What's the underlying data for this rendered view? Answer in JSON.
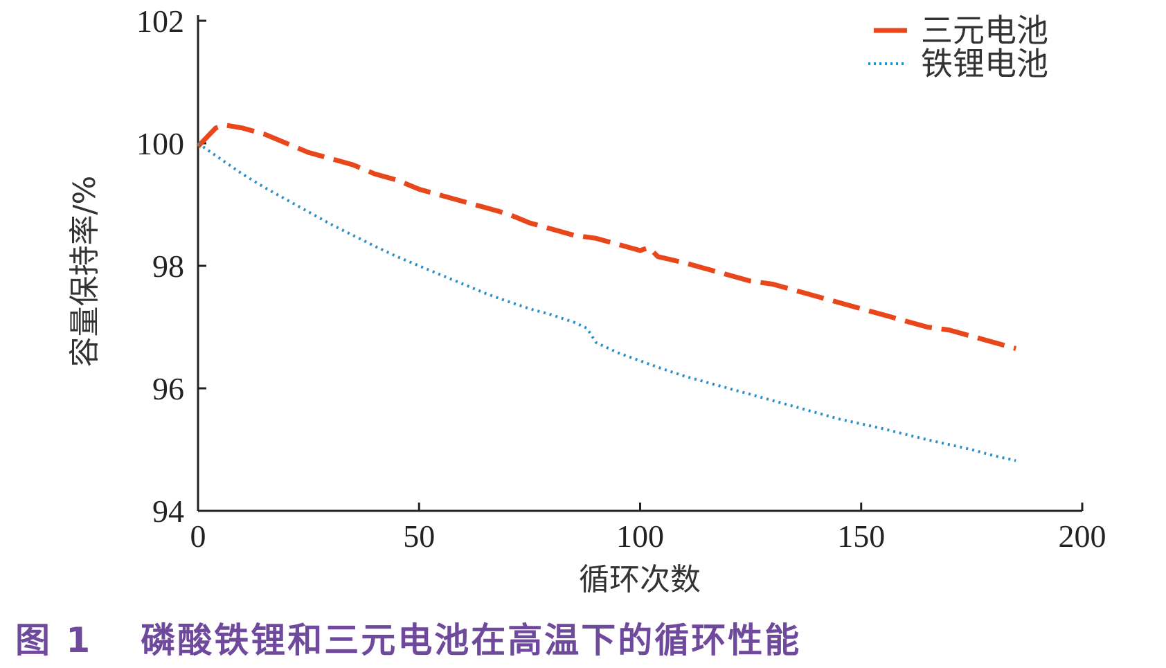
{
  "chart_data": {
    "type": "line",
    "title": "",
    "xlabel": "循环次数",
    "ylabel": "容量保持率/%",
    "xlim": [
      0,
      200
    ],
    "ylim": [
      94,
      102
    ],
    "xticks": [
      0,
      50,
      100,
      150,
      200
    ],
    "yticks": [
      94,
      96,
      98,
      100,
      102
    ],
    "grid": false,
    "legend_position": "top-right",
    "series": [
      {
        "name": "三元电池",
        "color": "#e8471c",
        "style": "dashed",
        "x": [
          0,
          2,
          4,
          6,
          10,
          15,
          20,
          25,
          30,
          35,
          40,
          45,
          50,
          55,
          60,
          65,
          70,
          75,
          80,
          85,
          90,
          95,
          100,
          102,
          104,
          110,
          115,
          120,
          125,
          130,
          135,
          140,
          145,
          150,
          155,
          160,
          165,
          170,
          175,
          180,
          185
        ],
        "y": [
          99.95,
          100.1,
          100.25,
          100.3,
          100.25,
          100.15,
          100.0,
          99.85,
          99.75,
          99.65,
          99.5,
          99.4,
          99.25,
          99.15,
          99.05,
          98.95,
          98.85,
          98.7,
          98.6,
          98.5,
          98.45,
          98.35,
          98.25,
          98.3,
          98.15,
          98.05,
          97.95,
          97.85,
          97.75,
          97.7,
          97.6,
          97.5,
          97.4,
          97.3,
          97.2,
          97.1,
          97.0,
          96.95,
          96.85,
          96.75,
          96.65
        ]
      },
      {
        "name": "铁锂电池",
        "color": "#2a8fc6",
        "style": "dotted",
        "x": [
          0,
          5,
          10,
          15,
          20,
          25,
          30,
          35,
          40,
          45,
          50,
          55,
          60,
          65,
          70,
          75,
          80,
          85,
          88,
          90,
          95,
          100,
          105,
          110,
          115,
          120,
          125,
          130,
          135,
          140,
          145,
          150,
          155,
          160,
          165,
          170,
          175,
          180,
          185
        ],
        "y": [
          100.0,
          99.75,
          99.5,
          99.28,
          99.08,
          98.88,
          98.68,
          98.5,
          98.32,
          98.15,
          98.0,
          97.85,
          97.7,
          97.55,
          97.42,
          97.3,
          97.2,
          97.08,
          96.98,
          96.75,
          96.58,
          96.45,
          96.32,
          96.2,
          96.1,
          96.0,
          95.9,
          95.8,
          95.7,
          95.6,
          95.5,
          95.42,
          95.34,
          95.25,
          95.16,
          95.08,
          95.0,
          94.9,
          94.82
        ]
      }
    ]
  },
  "caption": {
    "figure_number": "图 1",
    "text": "磷酸铁锂和三元电池在高温下的循环性能"
  }
}
